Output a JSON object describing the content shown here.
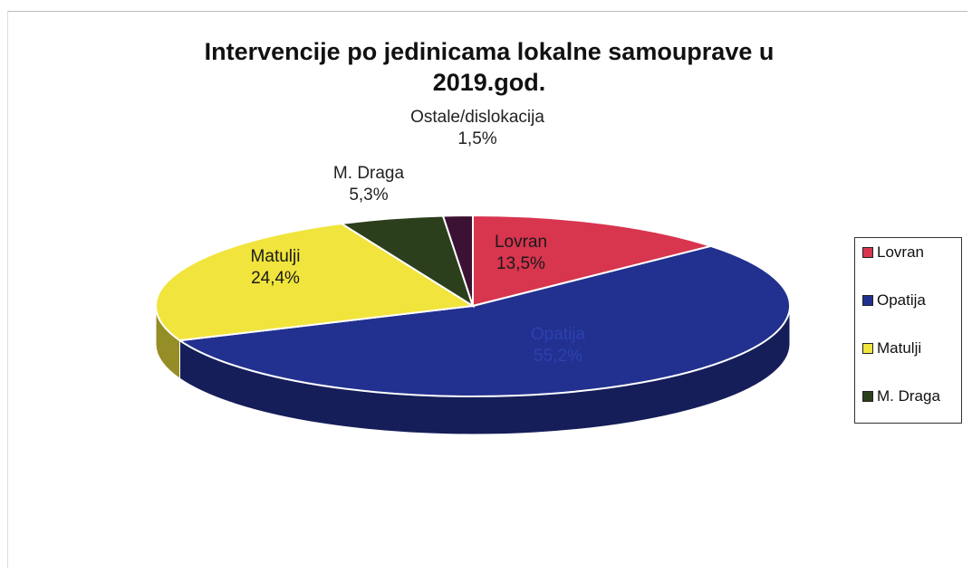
{
  "chart_data": {
    "type": "pie3d",
    "title": "Intervencije po jedinicama lokalne samouprave u 2019.god.",
    "categories": [
      "Lovran",
      "Opatija",
      "Matulji",
      "M. Draga",
      "Ostale/dislokacija"
    ],
    "values": [
      13.5,
      55.2,
      24.4,
      5.3,
      1.5
    ],
    "value_labels": [
      "13,5%",
      "55,2%",
      "24,4%",
      "5,3%",
      "1,5%"
    ],
    "colors": [
      "#d8354f",
      "#22318f",
      "#f1e43c",
      "#2c3f1d",
      "#3b1233"
    ],
    "legend": {
      "position": "right",
      "entries": [
        "Lovran",
        "Opatija",
        "Matulji",
        "M. Draga"
      ]
    }
  }
}
